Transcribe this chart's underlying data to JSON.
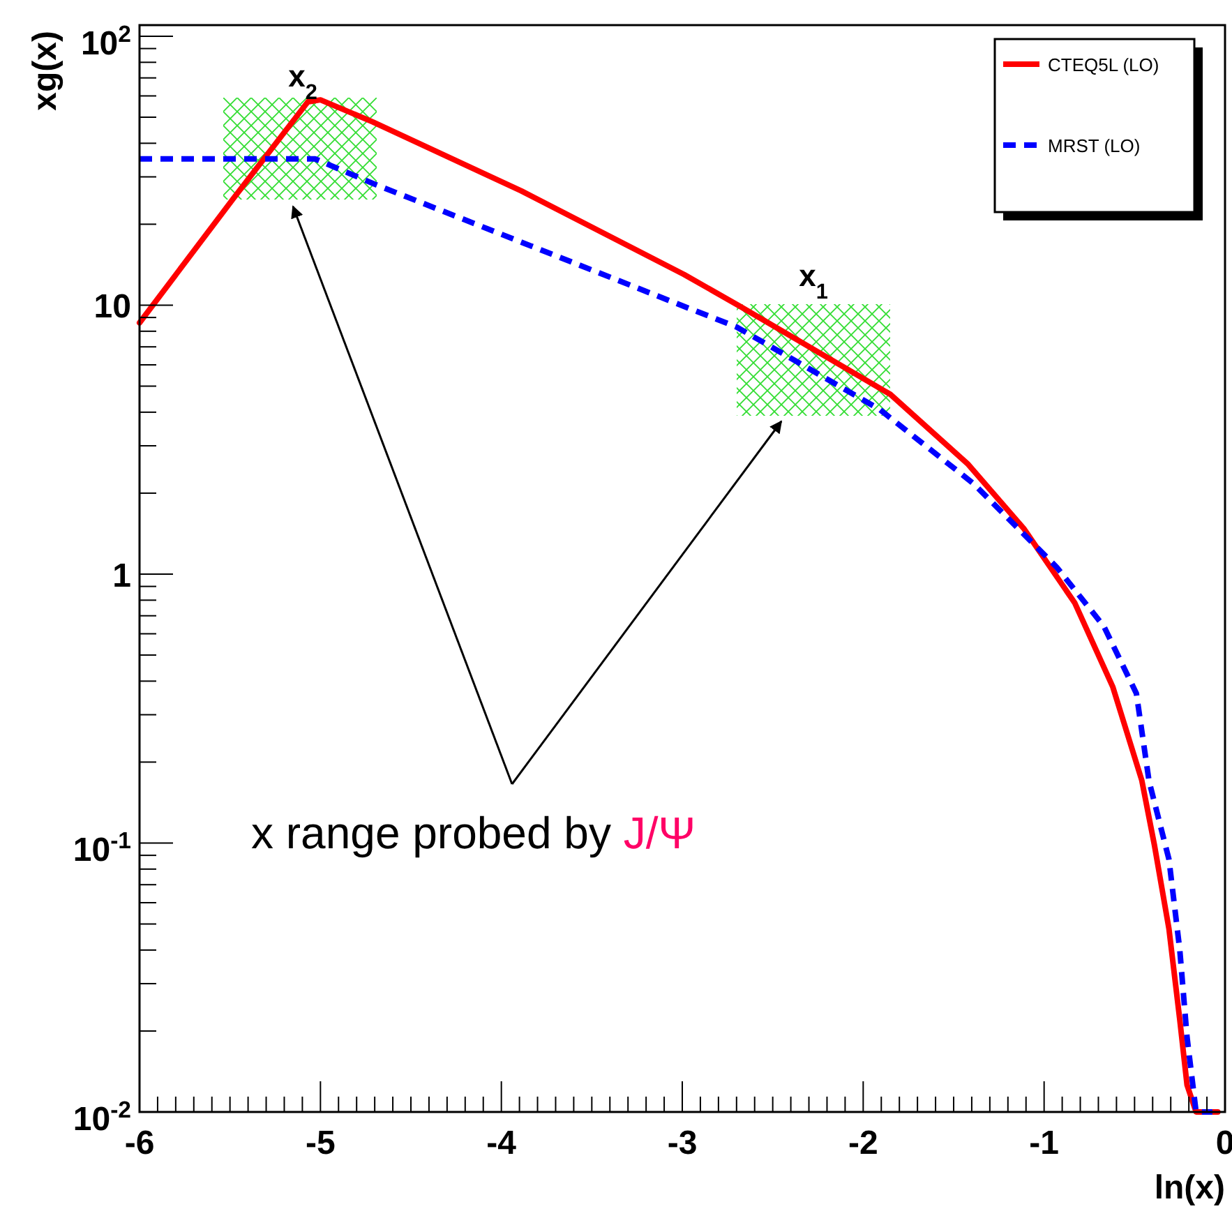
{
  "chart_data": {
    "type": "line",
    "xlabel": "ln(x)",
    "ylabel": "xg(x)",
    "log": "y",
    "xlim": [
      -6,
      0
    ],
    "xticks": [
      -6,
      -5,
      -4,
      -3,
      -2,
      -1,
      0
    ],
    "ylim": [
      0.01,
      110
    ],
    "yticks": [
      {
        "value": 0.01,
        "label": "10$^{-2}$"
      },
      {
        "value": 0.1,
        "label": "10$^{-1}$"
      },
      1,
      10,
      {
        "value": 100,
        "label": "10$^{2}$"
      }
    ],
    "legend": "top right",
    "grid": false,
    "series": [
      {
        "name": "CTEQ5L (LO)",
        "color": "#ff0000",
        "line_style": "solid",
        "x": [
          -6,
          -5.48,
          -5.07,
          -5.0,
          -4.71,
          -3.89,
          -2.99,
          -2.68,
          -1.85,
          -1.42,
          -1.11,
          -0.83,
          -0.62,
          -0.46,
          -0.39,
          -0.31,
          -0.25,
          -0.21,
          -0.16,
          -0.04
        ],
        "values": [
          8.6,
          25,
          57,
          58,
          48,
          26.6,
          13,
          9.9,
          4.66,
          2.56,
          1.47,
          0.78,
          0.38,
          0.171,
          0.098,
          0.048,
          0.022,
          0.0126,
          0.01,
          0.01
        ]
      },
      {
        "name": "MRST (LO)",
        "color": "#0000ff",
        "line_style": "dashed",
        "x": [
          -6,
          -5.03,
          -4.69,
          -3.04,
          -2.7,
          -1.91,
          -1.39,
          -0.93,
          -0.67,
          -0.49,
          -0.42,
          -0.31,
          -0.25,
          -0.21,
          -0.16,
          -0.07
        ],
        "values": [
          35,
          35,
          28,
          10.2,
          8.3,
          4.1,
          2.17,
          1.06,
          0.64,
          0.36,
          0.17,
          0.087,
          0.04,
          0.019,
          0.01,
          0.01
        ]
      }
    ],
    "annotations": [
      "x$_{2}$",
      "x$_{1}$",
      "x range probed by J/Ψ"
    ]
  }
}
